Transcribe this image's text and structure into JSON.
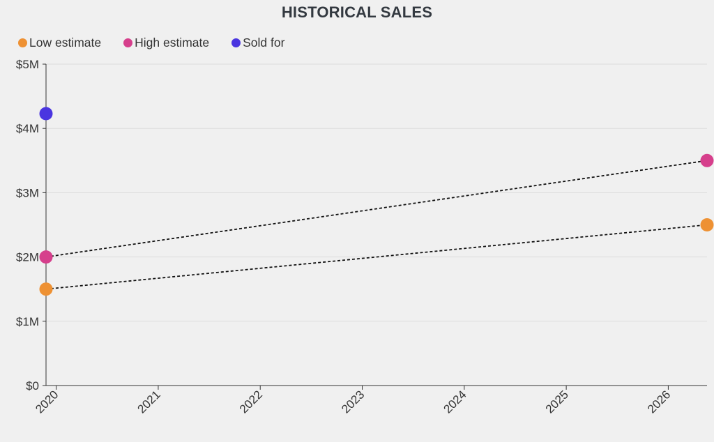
{
  "chart_data": {
    "type": "line",
    "title": "HISTORICAL SALES",
    "xlabel": "",
    "ylabel": "",
    "ylim": [
      0,
      5000000
    ],
    "xlim": [
      2019.9,
      2026.38
    ],
    "x_ticks": [
      {
        "value": 2020,
        "label": "2020"
      },
      {
        "value": 2021,
        "label": "2021"
      },
      {
        "value": 2022,
        "label": "2022"
      },
      {
        "value": 2023,
        "label": "2023"
      },
      {
        "value": 2024,
        "label": "2024"
      },
      {
        "value": 2025,
        "label": "2025"
      },
      {
        "value": 2026,
        "label": "2026"
      }
    ],
    "y_ticks": [
      {
        "value": 0,
        "label": "$0"
      },
      {
        "value": 1000000,
        "label": "$1M"
      },
      {
        "value": 2000000,
        "label": "$2M"
      },
      {
        "value": 3000000,
        "label": "$3M"
      },
      {
        "value": 4000000,
        "label": "$4M"
      },
      {
        "value": 5000000,
        "label": "$5M"
      }
    ],
    "grid": true,
    "legend_position": "top-left",
    "series": [
      {
        "name": "Low estimate",
        "key": "low",
        "color": "#ee9133",
        "line": "dotted",
        "points": [
          {
            "x": 2019.9,
            "y": 1500000
          },
          {
            "x": 2026.38,
            "y": 2500000
          }
        ]
      },
      {
        "name": "High estimate",
        "key": "high",
        "color": "#d63f8c",
        "line": "dotted",
        "points": [
          {
            "x": 2019.9,
            "y": 2000000
          },
          {
            "x": 2026.38,
            "y": 3500000
          }
        ]
      },
      {
        "name": "Sold for",
        "key": "sold",
        "color": "#4a35e0",
        "line": "none",
        "points": [
          {
            "x": 2019.9,
            "y": 4230000
          }
        ]
      }
    ]
  }
}
